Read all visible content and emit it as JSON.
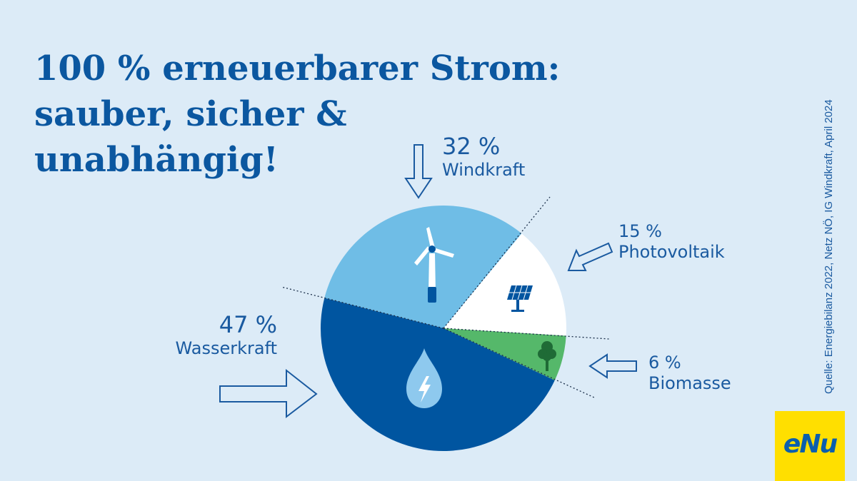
{
  "title_lines": [
    "100 % erneuerbarer Strom:",
    "sauber, sicher &",
    "unabhängig!"
  ],
  "source": "Quelle: Energiebilanz 2022, Netz NÖ, IG Windkraft, April 2024",
  "logo_text": "eNu",
  "colors": {
    "background": "#dcebf7",
    "title": "#0b57a0",
    "label": "#1a5aa0",
    "logo_bg": "#ffdf00"
  },
  "chart_data": {
    "type": "pie",
    "slices": [
      {
        "label": "Windkraft",
        "value": 32,
        "value_label": "32 %",
        "color": "#6fbde6",
        "icon": "wind-turbine-icon"
      },
      {
        "label": "Photovoltaik",
        "value": 15,
        "value_label": "15 %",
        "color": "#ffffff",
        "icon": "solar-panel-icon"
      },
      {
        "label": "Biomasse",
        "value": 6,
        "value_label": "6 %",
        "color": "#55b86a",
        "icon": "tree-icon"
      },
      {
        "label": "Wasserkraft",
        "value": 47,
        "value_label": "47 %",
        "color": "#0055a0",
        "icon": "water-drop-lightning-icon"
      }
    ]
  }
}
